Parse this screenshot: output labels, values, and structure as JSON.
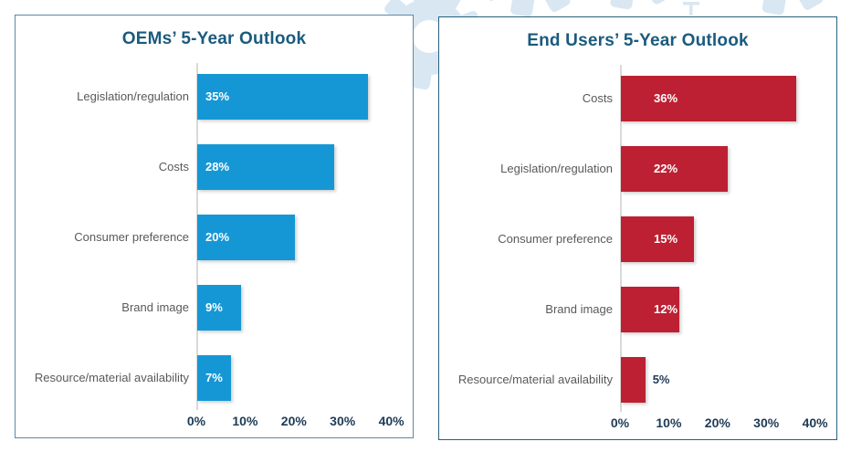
{
  "page": {
    "background_color": "#ffffff",
    "decor_gear_color": "#d9e7f2"
  },
  "charts_shared": {
    "axis_color": "#d9d9d9",
    "tick_label_color": "#1e3a56",
    "category_label_color": "#58595b",
    "title_color": "#1a5b7e"
  },
  "chart_data": [
    {
      "type": "bar",
      "orientation": "horizontal",
      "title": "OEMs’ 5-Year Outlook",
      "categories": [
        "Legislation/regulation",
        "Costs",
        "Consumer preference",
        "Brand image",
        "Resource/material availability"
      ],
      "values": [
        35,
        28,
        20,
        9,
        7
      ],
      "data_labels": [
        "35%",
        "28%",
        "20%",
        "9%",
        "7%"
      ],
      "data_label_positions": [
        "inside",
        "inside",
        "inside",
        "inside",
        "inside"
      ],
      "x_tick_labels": [
        "0%",
        "10%",
        "20%",
        "30%",
        "40%"
      ],
      "xlim": [
        0,
        40
      ],
      "grid": false,
      "legend": "none",
      "bar_color": "#1697d5",
      "panel_border_color": "#5d8aa4"
    },
    {
      "type": "bar",
      "orientation": "horizontal",
      "title": "End Users’ 5-Year Outlook",
      "categories": [
        "Costs",
        "Legislation/regulation",
        "Consumer preference",
        "Brand image",
        "Resource/material availability"
      ],
      "values": [
        36,
        22,
        15,
        12,
        5
      ],
      "data_labels": [
        "36%",
        "22%",
        "15%",
        "12%",
        "5%"
      ],
      "data_label_positions": [
        "inside",
        "inside",
        "inside",
        "inside",
        "outside"
      ],
      "x_tick_labels": [
        "0%",
        "10%",
        "20%",
        "30%",
        "40%"
      ],
      "xlim": [
        0,
        40
      ],
      "grid": false,
      "legend": "none",
      "bar_color": "#bd2032",
      "panel_border_color": "#27607f"
    }
  ]
}
